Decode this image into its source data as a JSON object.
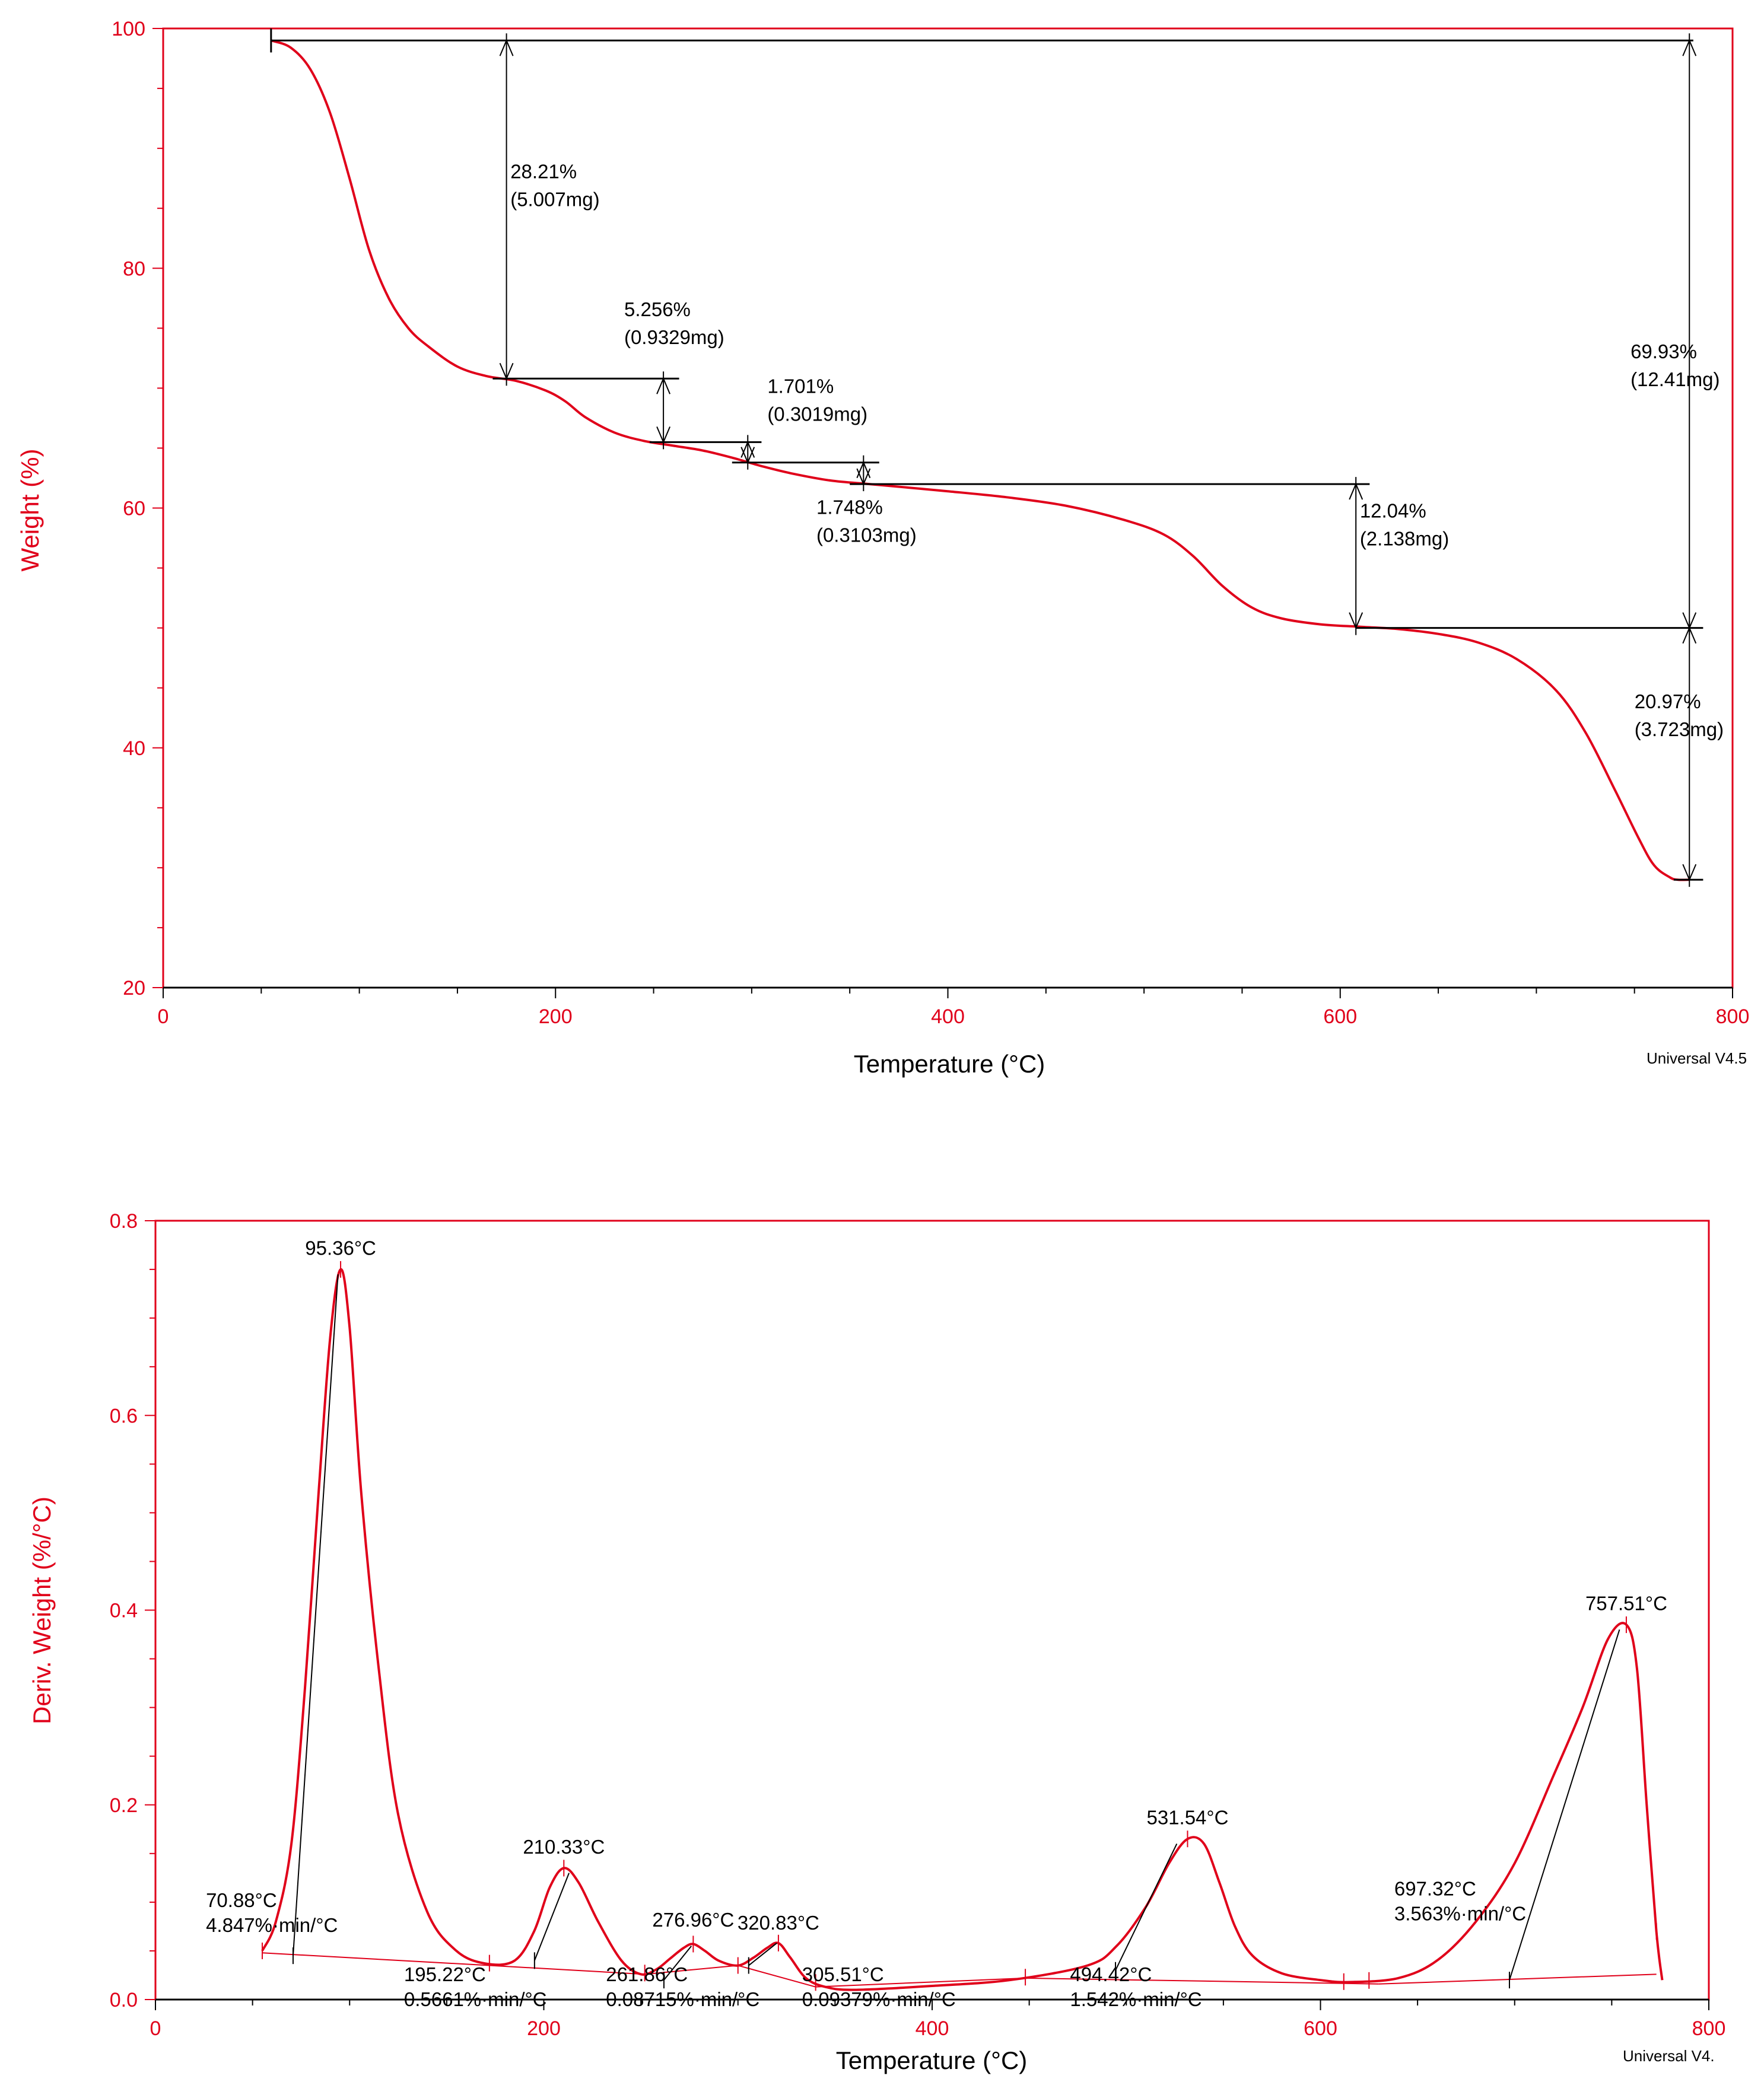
{
  "chart_data": [
    {
      "type": "line",
      "title": "",
      "xlabel": "Temperature (°C)",
      "ylabel": "Weight (%)",
      "xlim": [
        0,
        800
      ],
      "ylim": [
        20,
        100
      ],
      "xticks": [
        "0",
        "200",
        "400",
        "600",
        "800"
      ],
      "yticks": [
        "20",
        "40",
        "60",
        "80",
        "100"
      ],
      "footer": "Universal V4.5",
      "series": [
        {
          "name": "Weight",
          "color": "#e0001a",
          "x": [
            55,
            65,
            75,
            85,
            95,
            105,
            115,
            125,
            135,
            150,
            165,
            180,
            195,
            205,
            215,
            230,
            245,
            260,
            275,
            290,
            305,
            320,
            340,
            360,
            380,
            400,
            430,
            460,
            490,
            510,
            525,
            540,
            555,
            570,
            590,
            610,
            630,
            650,
            670,
            690,
            710,
            725,
            740,
            752,
            760,
            768,
            772,
            778
          ],
          "y": [
            99.0,
            98.4,
            96.6,
            93.0,
            87.5,
            81.5,
            77.5,
            75.0,
            73.5,
            71.8,
            71.0,
            70.6,
            69.8,
            68.9,
            67.6,
            66.3,
            65.6,
            65.2,
            64.8,
            64.2,
            63.5,
            62.9,
            62.3,
            62.0,
            61.7,
            61.4,
            60.9,
            60.2,
            59.0,
            57.8,
            56.0,
            53.5,
            51.7,
            50.8,
            50.3,
            50.1,
            49.9,
            49.5,
            48.8,
            47.4,
            44.8,
            41.3,
            36.5,
            32.5,
            30.2,
            29.2,
            29.0,
            29.0
          ]
        }
      ],
      "steps": [
        {
          "percent": "28.21%",
          "mass": "(5.007mg)",
          "from": 99.0,
          "to": 70.8
        },
        {
          "percent": "5.256%",
          "mass": "(0.9329mg)",
          "from": 70.8,
          "to": 65.5
        },
        {
          "percent": "1.701%",
          "mass": "(0.3019mg)",
          "from": 65.5,
          "to": 63.8
        },
        {
          "percent": "1.748%",
          "mass": "(0.3103mg)",
          "from": 63.8,
          "to": 62.0
        },
        {
          "percent": "12.04%",
          "mass": "(2.138mg)",
          "from": 62.0,
          "to": 50.0
        },
        {
          "percent": "20.97%",
          "mass": "(3.723mg)",
          "from": 50.0,
          "to": 29.0
        },
        {
          "percent": "69.93%",
          "mass": "(12.41mg)",
          "from": 99.0,
          "to": 29.0
        }
      ]
    },
    {
      "type": "line",
      "title": "",
      "xlabel": "Temperature (°C)",
      "ylabel": "Deriv. Weight (%/°C)",
      "xlim": [
        0,
        800
      ],
      "ylim": [
        0,
        0.8
      ],
      "xticks": [
        "0",
        "200",
        "400",
        "600",
        "800"
      ],
      "yticks": [
        "0.0",
        "0.2",
        "0.4",
        "0.6",
        "0.8"
      ],
      "footer": "Universal V4.",
      "series": [
        {
          "name": "Deriv. Weight",
          "color": "#e0001a",
          "x": [
            55,
            62,
            70,
            77,
            84,
            90,
            95.36,
            100,
            106,
            115,
            125,
            140,
            155,
            170,
            185,
            195,
            203,
            210.33,
            218,
            228,
            240,
            250,
            258,
            265,
            272,
            276.96,
            283,
            290,
            300,
            308,
            315,
            320.83,
            327,
            335,
            345,
            360,
            400,
            440,
            480,
            495,
            510,
            522,
            531.54,
            540,
            548,
            556,
            565,
            580,
            600,
            615,
            640,
            660,
            680,
            700,
            720,
            735,
            748,
            757.51,
            763,
            768,
            773,
            776
          ],
          "y": [
            0.05,
            0.08,
            0.16,
            0.32,
            0.52,
            0.68,
            0.75,
            0.69,
            0.52,
            0.34,
            0.19,
            0.09,
            0.05,
            0.037,
            0.04,
            0.07,
            0.115,
            0.135,
            0.12,
            0.08,
            0.04,
            0.026,
            0.031,
            0.042,
            0.053,
            0.057,
            0.05,
            0.04,
            0.035,
            0.043,
            0.053,
            0.058,
            0.043,
            0.022,
            0.013,
            0.01,
            0.014,
            0.02,
            0.035,
            0.055,
            0.095,
            0.14,
            0.165,
            0.16,
            0.12,
            0.075,
            0.045,
            0.027,
            0.02,
            0.018,
            0.022,
            0.04,
            0.08,
            0.14,
            0.23,
            0.3,
            0.37,
            0.385,
            0.34,
            0.2,
            0.07,
            0.02
          ]
        }
      ],
      "peak_labels": [
        "95.36°C",
        "210.33°C",
        "276.96°C",
        "320.83°C",
        "531.54°C",
        "757.51°C"
      ],
      "onset_labels": [
        {
          "temp": "70.88°C",
          "rate": "4.847%·min/°C"
        },
        {
          "temp": "195.22°C",
          "rate": "0.5661%·min/°C"
        },
        {
          "temp": "261.86°C",
          "rate": "0.08715%·min/°C"
        },
        {
          "temp": "305.51°C",
          "rate": "0.09379%·min/°C"
        },
        {
          "temp": "494.42°C",
          "rate": "1.542%·min/°C"
        },
        {
          "temp": "697.32°C",
          "rate": "3.563%·min/°C"
        }
      ]
    }
  ]
}
